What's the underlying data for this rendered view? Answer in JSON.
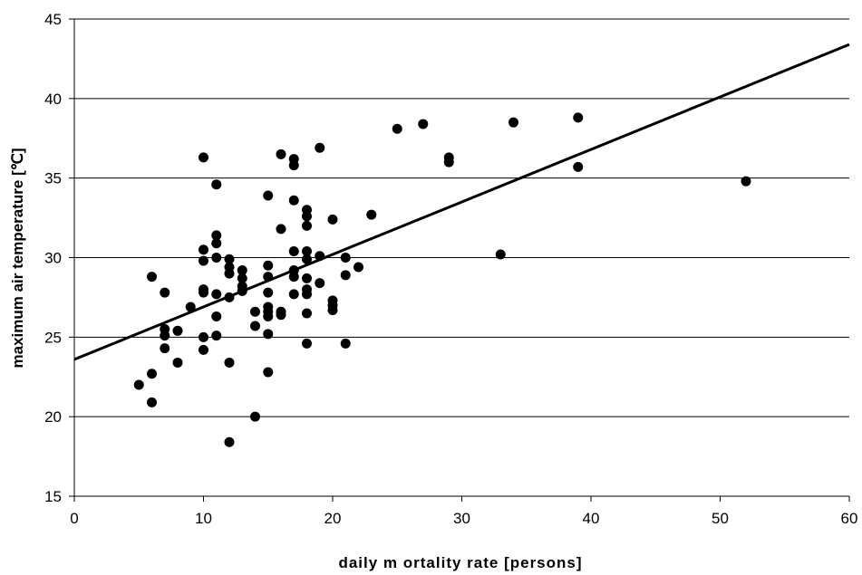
{
  "chart_data": {
    "type": "scatter",
    "xlabel": "daily m ortality rate [persons]",
    "ylabel": "maximum air temperature [℃]",
    "xlim": [
      0,
      60
    ],
    "ylim": [
      15,
      45
    ],
    "xticks": [
      0,
      10,
      20,
      30,
      40,
      50,
      60
    ],
    "yticks": [
      15,
      20,
      25,
      30,
      35,
      40,
      45
    ],
    "grid": "horizontal",
    "legend": "none",
    "colors": {
      "points": "#000000",
      "trendline": "#000000",
      "grid": "#000000"
    },
    "trendline": {
      "type": "linear",
      "start": [
        0,
        23.6
      ],
      "end": [
        60,
        43.4
      ]
    },
    "points": [
      [
        5,
        22.0
      ],
      [
        6,
        28.8
      ],
      [
        6,
        22.7
      ],
      [
        6,
        20.9
      ],
      [
        7,
        27.8
      ],
      [
        7,
        25.5
      ],
      [
        7,
        25.1
      ],
      [
        7,
        24.3
      ],
      [
        8,
        25.4
      ],
      [
        8,
        23.4
      ],
      [
        9,
        26.9
      ],
      [
        10,
        36.3
      ],
      [
        10,
        30.5
      ],
      [
        10,
        29.8
      ],
      [
        10,
        28.0
      ],
      [
        10,
        27.8
      ],
      [
        10,
        25.0
      ],
      [
        10,
        24.2
      ],
      [
        11,
        34.6
      ],
      [
        11,
        31.4
      ],
      [
        11,
        30.9
      ],
      [
        11,
        30.0
      ],
      [
        11,
        27.7
      ],
      [
        11,
        26.3
      ],
      [
        11,
        25.1
      ],
      [
        12,
        29.9
      ],
      [
        12,
        29.4
      ],
      [
        12,
        29.0
      ],
      [
        12,
        27.5
      ],
      [
        12,
        23.4
      ],
      [
        12,
        18.4
      ],
      [
        13,
        29.2
      ],
      [
        13,
        28.7
      ],
      [
        13,
        28.2
      ],
      [
        13,
        27.9
      ],
      [
        14,
        26.6
      ],
      [
        14,
        25.7
      ],
      [
        14,
        20.0
      ],
      [
        15,
        33.9
      ],
      [
        15,
        29.5
      ],
      [
        15,
        28.8
      ],
      [
        15,
        27.8
      ],
      [
        15,
        26.9
      ],
      [
        15,
        26.6
      ],
      [
        15,
        26.3
      ],
      [
        15,
        25.2
      ],
      [
        15,
        22.8
      ],
      [
        16,
        36.5
      ],
      [
        16,
        31.8
      ],
      [
        16,
        26.6
      ],
      [
        16,
        26.4
      ],
      [
        17,
        36.2
      ],
      [
        17,
        35.8
      ],
      [
        17,
        33.6
      ],
      [
        17,
        30.4
      ],
      [
        17,
        29.2
      ],
      [
        17,
        28.8
      ],
      [
        17,
        27.7
      ],
      [
        18,
        33.0
      ],
      [
        18,
        32.6
      ],
      [
        18,
        32.0
      ],
      [
        18,
        30.4
      ],
      [
        18,
        29.9
      ],
      [
        18,
        28.7
      ],
      [
        18,
        28.0
      ],
      [
        18,
        27.7
      ],
      [
        18,
        26.5
      ],
      [
        18,
        24.6
      ],
      [
        19,
        36.9
      ],
      [
        19,
        30.1
      ],
      [
        19,
        28.4
      ],
      [
        20,
        32.4
      ],
      [
        20,
        27.3
      ],
      [
        20,
        27.0
      ],
      [
        20,
        26.7
      ],
      [
        21,
        30.0
      ],
      [
        21,
        28.9
      ],
      [
        21,
        24.6
      ],
      [
        22,
        29.4
      ],
      [
        23,
        32.7
      ],
      [
        25,
        38.1
      ],
      [
        27,
        38.4
      ],
      [
        29,
        36.3
      ],
      [
        29,
        36.0
      ],
      [
        33,
        30.2
      ],
      [
        34,
        38.5
      ],
      [
        39,
        38.8
      ],
      [
        39,
        35.7
      ],
      [
        52,
        34.8
      ]
    ]
  }
}
